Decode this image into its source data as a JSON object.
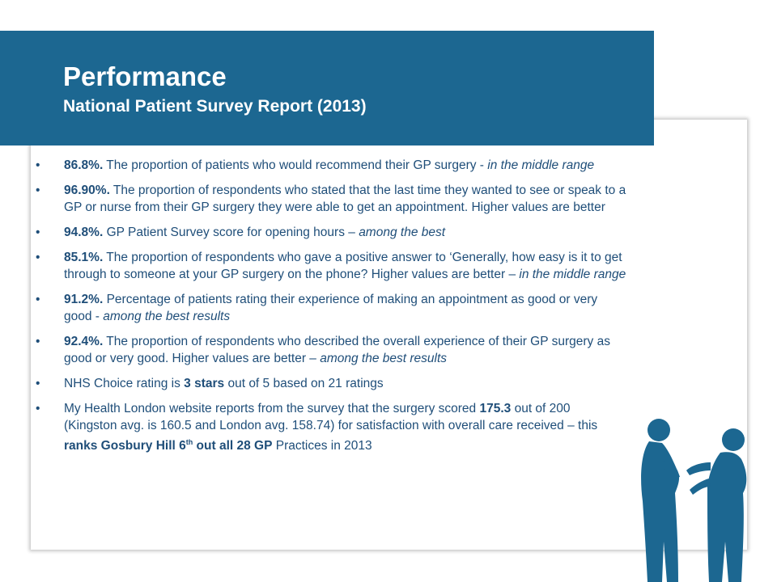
{
  "header": {
    "title": "Performance",
    "subtitle": "National Patient Survey Report (2013)"
  },
  "bullets": [
    {
      "bold": "86.8%.",
      "text": " The proportion of patients who would recommend their GP surgery - ",
      "italic": "in the middle range"
    },
    {
      "bold": "96.90%.",
      "text": " The proportion of respondents who stated that the last time they wanted to see or speak to a GP or nurse from their GP surgery they were able to get an appointment. Higher values are better"
    },
    {
      "bold": "94.8%.",
      "text": " GP Patient Survey score for opening hours – ",
      "italic": "among the best"
    },
    {
      "bold": "85.1%.",
      "text": " The proportion of respondents who gave a positive answer to ‘Generally, how easy is it to get through to someone at your GP surgery on the phone? Higher values are better – ",
      "italic": "in the middle range"
    },
    {
      "bold": "91.2%.",
      "text": " Percentage of patients rating their experience of making an appointment as good or very good - ",
      "italic": "among the best results"
    },
    {
      "bold": "92.4%.",
      "text": " The proportion of respondents who described the overall experience of their GP surgery as good or very good. Higher values are better – ",
      "italic": "among the best results"
    },
    {
      "pre": "NHS Choice rating is ",
      "bold": "3 stars",
      "text": " out of 5 based on 21 ratings"
    },
    {
      "pre": "My Health London website reports from the survey that the surgery scored ",
      "bold": "175.3",
      "text": " out of 200 (Kingston avg. is 160.5 and London avg. 158.74) for satisfaction with overall care received – this ",
      "bold2": "ranks Gosbury Hill 6",
      "sup": "th",
      "bold3": " out all 28 GP",
      "end": " Practices in 2013"
    }
  ],
  "colors": {
    "header_bg": "#1c6791",
    "text": "#1f4e79",
    "silhouette": "#1c6791"
  },
  "icons": {
    "illustration": "two-people-talking-silhouette"
  }
}
